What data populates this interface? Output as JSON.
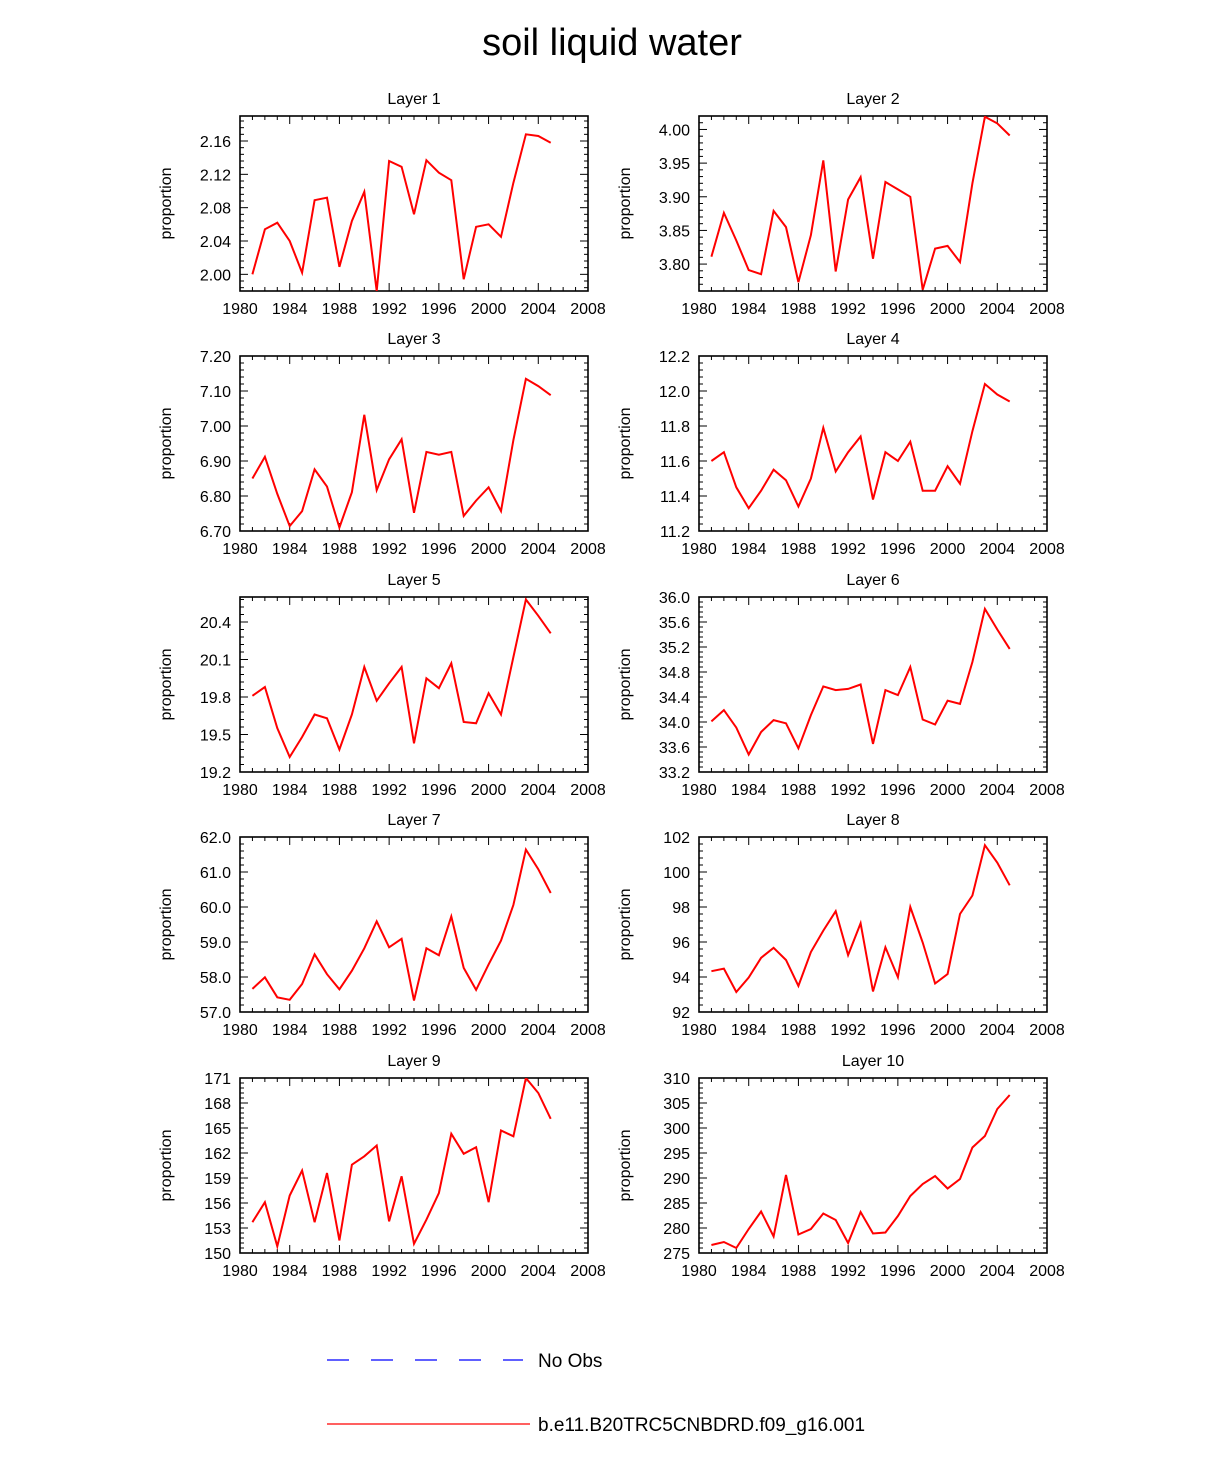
{
  "title": "soil liquid water",
  "legend": {
    "items": [
      {
        "label": "No Obs",
        "color": "#0000ff",
        "style": "dashed"
      },
      {
        "label": "b.e11.B20TRC5CNBDRD.f09_g16.001",
        "color": "#ff0000",
        "style": "solid"
      }
    ]
  },
  "chart_data": [
    {
      "type": "line",
      "title": "Layer 1",
      "xlabel": "",
      "ylabel": "proportion",
      "xlim": [
        1980,
        2008
      ],
      "ylim": [
        1.98,
        2.19
      ],
      "xticks": [
        1980,
        1984,
        1988,
        1992,
        1996,
        2000,
        2004,
        2008
      ],
      "yticks": [
        2.0,
        2.04,
        2.08,
        2.12,
        2.16
      ],
      "ydecimals": 2,
      "series": [
        {
          "name": "b.e11.B20TRC5CNBDRD.f09_g16.001",
          "color": "#ff0000",
          "x": [
            1981,
            1982,
            1983,
            1984,
            1985,
            1986,
            1987,
            1988,
            1989,
            1990,
            1991,
            1992,
            1993,
            1994,
            1995,
            1996,
            1997,
            1998,
            1999,
            2000,
            2001,
            2002,
            2003,
            2004,
            2005
          ],
          "y": [
            2.0,
            2.054,
            2.062,
            2.04,
            2.002,
            2.089,
            2.092,
            2.009,
            2.064,
            2.099,
            1.98,
            2.136,
            2.129,
            2.072,
            2.137,
            2.122,
            2.113,
            1.994,
            2.057,
            2.06,
            2.045,
            2.11,
            2.168,
            2.166,
            2.158
          ]
        }
      ]
    },
    {
      "type": "line",
      "title": "Layer 2",
      "xlabel": "",
      "ylabel": "proportion",
      "xlim": [
        1980,
        2008
      ],
      "ylim": [
        3.76,
        4.02
      ],
      "xticks": [
        1980,
        1984,
        1988,
        1992,
        1996,
        2000,
        2004,
        2008
      ],
      "yticks": [
        3.8,
        3.85,
        3.9,
        3.95,
        4.0
      ],
      "ydecimals": 2,
      "series": [
        {
          "name": "b.e11.B20TRC5CNBDRD.f09_g16.001",
          "color": "#ff0000",
          "x": [
            1981,
            1982,
            1983,
            1984,
            1985,
            1986,
            1987,
            1988,
            1989,
            1990,
            1991,
            1992,
            1993,
            1994,
            1995,
            1996,
            1997,
            1998,
            1999,
            2000,
            2001,
            2002,
            2003,
            2004,
            2005
          ],
          "y": [
            3.811,
            3.876,
            3.835,
            3.791,
            3.785,
            3.879,
            3.855,
            3.773,
            3.843,
            3.954,
            3.789,
            3.896,
            3.929,
            3.808,
            3.922,
            3.911,
            3.9,
            3.762,
            3.823,
            3.827,
            3.803,
            3.92,
            4.019,
            4.009,
            3.991
          ]
        }
      ]
    },
    {
      "type": "line",
      "title": "Layer 3",
      "xlabel": "",
      "ylabel": "proportion",
      "xlim": [
        1980,
        2008
      ],
      "ylim": [
        6.7,
        7.2
      ],
      "xticks": [
        1980,
        1984,
        1988,
        1992,
        1996,
        2000,
        2004,
        2008
      ],
      "yticks": [
        6.7,
        6.8,
        6.9,
        7.0,
        7.1,
        7.2
      ],
      "ydecimals": 2,
      "series": [
        {
          "name": "b.e11.B20TRC5CNBDRD.f09_g16.001",
          "color": "#ff0000",
          "x": [
            1981,
            1982,
            1983,
            1984,
            1985,
            1986,
            1987,
            1988,
            1989,
            1990,
            1991,
            1992,
            1993,
            1994,
            1995,
            1996,
            1997,
            1998,
            1999,
            2000,
            2001,
            2002,
            2003,
            2004,
            2005
          ],
          "y": [
            6.85,
            6.912,
            6.806,
            6.714,
            6.757,
            6.876,
            6.827,
            6.71,
            6.811,
            7.032,
            6.817,
            6.905,
            6.962,
            6.752,
            6.926,
            6.918,
            6.926,
            6.743,
            6.787,
            6.825,
            6.757,
            6.96,
            7.135,
            7.114,
            7.088
          ]
        }
      ]
    },
    {
      "type": "line",
      "title": "Layer 4",
      "xlabel": "",
      "ylabel": "proportion",
      "xlim": [
        1980,
        2008
      ],
      "ylim": [
        11.2,
        12.2
      ],
      "xticks": [
        1980,
        1984,
        1988,
        1992,
        1996,
        2000,
        2004,
        2008
      ],
      "yticks": [
        11.2,
        11.4,
        11.6,
        11.8,
        12.0,
        12.2
      ],
      "ydecimals": 1,
      "series": [
        {
          "name": "b.e11.B20TRC5CNBDRD.f09_g16.001",
          "color": "#ff0000",
          "x": [
            1981,
            1982,
            1983,
            1984,
            1985,
            1986,
            1987,
            1988,
            1989,
            1990,
            1991,
            1992,
            1993,
            1994,
            1995,
            1996,
            1997,
            1998,
            1999,
            2000,
            2001,
            2002,
            2003,
            2004,
            2005
          ],
          "y": [
            11.6,
            11.65,
            11.45,
            11.33,
            11.43,
            11.55,
            11.49,
            11.34,
            11.5,
            11.79,
            11.54,
            11.65,
            11.74,
            11.38,
            11.65,
            11.6,
            11.71,
            11.43,
            11.43,
            11.57,
            11.47,
            11.77,
            12.04,
            11.98,
            11.94
          ]
        }
      ]
    },
    {
      "type": "line",
      "title": "Layer 5",
      "xlabel": "",
      "ylabel": "proportion",
      "xlim": [
        1980,
        2008
      ],
      "ylim": [
        19.2,
        20.6
      ],
      "xticks": [
        1980,
        1984,
        1988,
        1992,
        1996,
        2000,
        2004,
        2008
      ],
      "yticks": [
        19.2,
        19.5,
        19.8,
        20.1,
        20.4
      ],
      "ydecimals": 1,
      "series": [
        {
          "name": "b.e11.B20TRC5CNBDRD.f09_g16.001",
          "color": "#ff0000",
          "x": [
            1981,
            1982,
            1983,
            1984,
            1985,
            1986,
            1987,
            1988,
            1989,
            1990,
            1991,
            1992,
            1993,
            1994,
            1995,
            1996,
            1997,
            1998,
            1999,
            2000,
            2001,
            2002,
            2003,
            2004,
            2005
          ],
          "y": [
            19.81,
            19.88,
            19.55,
            19.32,
            19.48,
            19.66,
            19.63,
            19.38,
            19.66,
            20.04,
            19.77,
            19.91,
            20.04,
            19.43,
            19.95,
            19.87,
            20.07,
            19.6,
            19.59,
            19.83,
            19.66,
            20.12,
            20.58,
            20.45,
            20.31
          ]
        }
      ]
    },
    {
      "type": "line",
      "title": "Layer 6",
      "xlabel": "",
      "ylabel": "proportion",
      "xlim": [
        1980,
        2008
      ],
      "ylim": [
        33.2,
        36.0
      ],
      "xticks": [
        1980,
        1984,
        1988,
        1992,
        1996,
        2000,
        2004,
        2008
      ],
      "yticks": [
        33.2,
        33.6,
        34.0,
        34.4,
        34.8,
        35.2,
        35.6,
        36.0
      ],
      "ydecimals": 1,
      "series": [
        {
          "name": "b.e11.B20TRC5CNBDRD.f09_g16.001",
          "color": "#ff0000",
          "x": [
            1981,
            1982,
            1983,
            1984,
            1985,
            1986,
            1987,
            1988,
            1989,
            1990,
            1991,
            1992,
            1993,
            1994,
            1995,
            1996,
            1997,
            1998,
            1999,
            2000,
            2001,
            2002,
            2003,
            2004,
            2005
          ],
          "y": [
            34.01,
            34.19,
            33.91,
            33.48,
            33.84,
            34.03,
            33.98,
            33.58,
            34.11,
            34.57,
            34.51,
            34.53,
            34.6,
            33.65,
            34.51,
            34.43,
            34.88,
            34.04,
            33.96,
            34.34,
            34.29,
            34.96,
            35.81,
            35.48,
            35.17
          ]
        }
      ]
    },
    {
      "type": "line",
      "title": "Layer 7",
      "xlabel": "",
      "ylabel": "proportion",
      "xlim": [
        1980,
        2008
      ],
      "ylim": [
        57.0,
        62.0
      ],
      "xticks": [
        1980,
        1984,
        1988,
        1992,
        1996,
        2000,
        2004,
        2008
      ],
      "yticks": [
        57.0,
        58.0,
        59.0,
        60.0,
        61.0,
        62.0
      ],
      "ydecimals": 1,
      "series": [
        {
          "name": "b.e11.B20TRC5CNBDRD.f09_g16.001",
          "color": "#ff0000",
          "x": [
            1981,
            1982,
            1983,
            1984,
            1985,
            1986,
            1987,
            1988,
            1989,
            1990,
            1991,
            1992,
            1993,
            1994,
            1995,
            1996,
            1997,
            1998,
            1999,
            2000,
            2001,
            2002,
            2003,
            2004,
            2005
          ],
          "y": [
            57.66,
            57.99,
            57.42,
            57.35,
            57.8,
            58.65,
            58.08,
            57.65,
            58.18,
            58.82,
            59.59,
            58.85,
            59.09,
            57.33,
            58.82,
            58.62,
            59.73,
            58.26,
            57.63,
            58.36,
            59.04,
            60.06,
            61.64,
            61.08,
            60.4
          ]
        }
      ]
    },
    {
      "type": "line",
      "title": "Layer 8",
      "xlabel": "",
      "ylabel": "proportion",
      "xlim": [
        1980,
        2008
      ],
      "ylim": [
        92,
        102
      ],
      "xticks": [
        1980,
        1984,
        1988,
        1992,
        1996,
        2000,
        2004,
        2008
      ],
      "yticks": [
        92,
        94,
        96,
        98,
        100,
        102
      ],
      "ydecimals": 0,
      "series": [
        {
          "name": "b.e11.B20TRC5CNBDRD.f09_g16.001",
          "color": "#ff0000",
          "x": [
            1981,
            1982,
            1983,
            1984,
            1985,
            1986,
            1987,
            1988,
            1989,
            1990,
            1991,
            1992,
            1993,
            1994,
            1995,
            1996,
            1997,
            1998,
            1999,
            2000,
            2001,
            2002,
            2003,
            2004,
            2005
          ],
          "y": [
            94.33,
            94.48,
            93.14,
            93.97,
            95.1,
            95.67,
            94.97,
            93.49,
            95.43,
            96.65,
            97.76,
            95.25,
            97.07,
            93.17,
            95.7,
            93.99,
            98.0,
            95.97,
            93.63,
            94.17,
            97.6,
            98.66,
            101.53,
            100.53,
            99.24
          ]
        }
      ]
    },
    {
      "type": "line",
      "title": "Layer 9",
      "xlabel": "",
      "ylabel": "proportion",
      "xlim": [
        1980,
        2008
      ],
      "ylim": [
        150,
        171
      ],
      "xticks": [
        1980,
        1984,
        1988,
        1992,
        1996,
        2000,
        2004,
        2008
      ],
      "yticks": [
        150,
        153,
        156,
        159,
        162,
        165,
        168,
        171
      ],
      "ydecimals": 0,
      "series": [
        {
          "name": "b.e11.B20TRC5CNBDRD.f09_g16.001",
          "color": "#ff0000",
          "x": [
            1981,
            1982,
            1983,
            1984,
            1985,
            1986,
            1987,
            1988,
            1989,
            1990,
            1991,
            1992,
            1993,
            1994,
            1995,
            1996,
            1997,
            1998,
            1999,
            2000,
            2001,
            2002,
            2003,
            2004,
            2005
          ],
          "y": [
            153.7,
            156.1,
            150.8,
            156.9,
            159.9,
            153.7,
            159.6,
            151.5,
            160.6,
            161.6,
            162.9,
            153.8,
            159.2,
            151.1,
            154.0,
            157.2,
            164.3,
            161.9,
            162.7,
            156.1,
            164.7,
            164.0,
            171.0,
            169.2,
            166.1
          ]
        }
      ]
    },
    {
      "type": "line",
      "title": "Layer 10",
      "xlabel": "",
      "ylabel": "proportion",
      "xlim": [
        1980,
        2008
      ],
      "ylim": [
        275,
        310
      ],
      "xticks": [
        1980,
        1984,
        1988,
        1992,
        1996,
        2000,
        2004,
        2008
      ],
      "yticks": [
        275,
        280,
        285,
        290,
        295,
        300,
        305,
        310
      ],
      "ydecimals": 0,
      "series": [
        {
          "name": "b.e11.B20TRC5CNBDRD.f09_g16.001",
          "color": "#ff0000",
          "x": [
            1981,
            1982,
            1983,
            1984,
            1985,
            1986,
            1987,
            1988,
            1989,
            1990,
            1991,
            1992,
            1993,
            1994,
            1995,
            1996,
            1997,
            1998,
            1999,
            2000,
            2001,
            2002,
            2003,
            2004,
            2005
          ],
          "y": [
            276.6,
            277.2,
            276.0,
            279.8,
            283.3,
            278.3,
            290.6,
            278.7,
            279.8,
            282.9,
            281.6,
            277.0,
            283.2,
            278.9,
            279.1,
            282.4,
            286.4,
            288.8,
            290.4,
            287.9,
            289.8,
            296.1,
            298.4,
            303.8,
            306.6
          ]
        }
      ]
    }
  ]
}
